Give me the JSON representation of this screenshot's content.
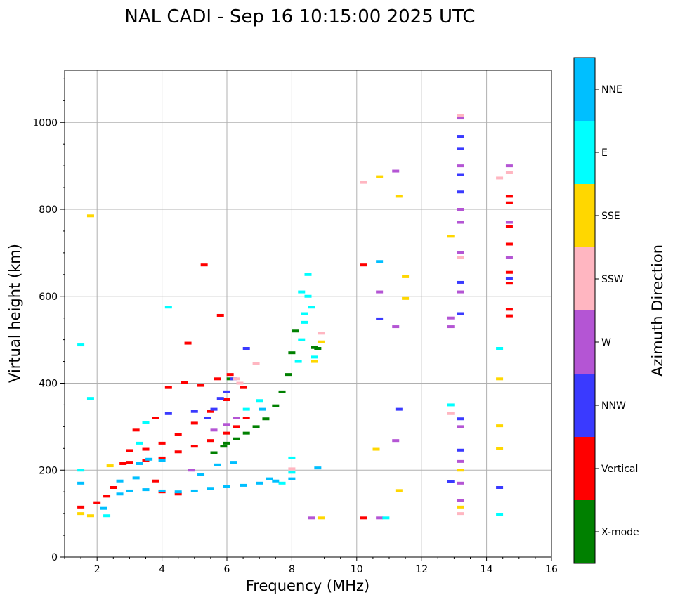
{
  "chart_data": {
    "type": "scatter",
    "title": "NAL CADI - Sep 16 10:15:00 2025 UTC",
    "xlabel": "Frequency (MHz)",
    "ylabel": "Virtual height (km)",
    "xlim": [
      1,
      16
    ],
    "ylim": [
      0,
      1120
    ],
    "x_ticks": [
      2,
      4,
      6,
      8,
      10,
      12,
      14,
      16
    ],
    "y_ticks": [
      0,
      200,
      400,
      600,
      800,
      1000
    ],
    "grid": true,
    "colorbar": {
      "label": "Azimuth Direction",
      "position": "right",
      "categories": [
        {
          "name": "X-mode",
          "color": "#008000"
        },
        {
          "name": "Vertical",
          "color": "#ff0000"
        },
        {
          "name": "NNW",
          "color": "#3a3aff"
        },
        {
          "name": "W",
          "color": "#b455d4"
        },
        {
          "name": "SSW",
          "color": "#ffb6c1"
        },
        {
          "name": "SSE",
          "color": "#ffd700"
        },
        {
          "name": "E",
          "color": "#00ffff"
        },
        {
          "name": "NNE",
          "color": "#00bfff"
        }
      ]
    },
    "series": [
      {
        "name": "X-mode",
        "points": [
          [
            6.0,
            262
          ],
          [
            6.3,
            272
          ],
          [
            6.6,
            285
          ],
          [
            6.9,
            300
          ],
          [
            7.2,
            318
          ],
          [
            7.5,
            348
          ],
          [
            7.7,
            380
          ],
          [
            7.9,
            420
          ],
          [
            8.0,
            470
          ],
          [
            8.1,
            520
          ],
          [
            8.7,
            482
          ],
          [
            8.8,
            480
          ],
          [
            5.6,
            240
          ],
          [
            5.9,
            255
          ],
          [
            6.1,
            410
          ]
        ]
      },
      {
        "name": "Vertical",
        "points": [
          [
            1.5,
            115
          ],
          [
            2.0,
            125
          ],
          [
            2.3,
            140
          ],
          [
            2.5,
            160
          ],
          [
            2.8,
            215
          ],
          [
            3.0,
            218
          ],
          [
            3.5,
            222
          ],
          [
            4.0,
            228
          ],
          [
            4.5,
            242
          ],
          [
            5.0,
            255
          ],
          [
            5.5,
            268
          ],
          [
            6.0,
            285
          ],
          [
            6.3,
            300
          ],
          [
            6.6,
            320
          ],
          [
            3.0,
            245
          ],
          [
            3.5,
            248
          ],
          [
            4.0,
            262
          ],
          [
            4.5,
            282
          ],
          [
            5.0,
            308
          ],
          [
            5.5,
            335
          ],
          [
            6.0,
            362
          ],
          [
            6.5,
            390
          ],
          [
            3.2,
            292
          ],
          [
            3.8,
            320
          ],
          [
            4.2,
            390
          ],
          [
            4.7,
            402
          ],
          [
            5.2,
            395
          ],
          [
            5.7,
            410
          ],
          [
            6.1,
            420
          ],
          [
            4.0,
            150
          ],
          [
            4.5,
            145
          ],
          [
            3.8,
            175
          ],
          [
            5.3,
            672
          ],
          [
            5.8,
            556
          ],
          [
            4.8,
            492
          ],
          [
            10.2,
            90
          ],
          [
            10.2,
            672
          ],
          [
            14.7,
            555
          ],
          [
            14.7,
            570
          ],
          [
            14.7,
            630
          ],
          [
            14.7,
            655
          ],
          [
            14.7,
            720
          ],
          [
            14.7,
            760
          ],
          [
            14.7,
            815
          ],
          [
            14.7,
            830
          ]
        ]
      },
      {
        "name": "NNW",
        "points": [
          [
            5.4,
            320
          ],
          [
            5.6,
            340
          ],
          [
            5.8,
            365
          ],
          [
            6.0,
            380
          ],
          [
            6.2,
            410
          ],
          [
            4.2,
            330
          ],
          [
            5.0,
            335
          ],
          [
            6.6,
            480
          ],
          [
            10.7,
            548
          ],
          [
            11.3,
            340
          ],
          [
            13.2,
            560
          ],
          [
            13.2,
            632
          ],
          [
            13.2,
            840
          ],
          [
            13.2,
            940
          ],
          [
            13.2,
            968
          ],
          [
            13.2,
            880
          ],
          [
            13.2,
            318
          ],
          [
            13.2,
            246
          ],
          [
            12.9,
            173
          ],
          [
            14.4,
            160
          ],
          [
            14.7,
            640
          ]
        ]
      },
      {
        "name": "W",
        "points": [
          [
            5.6,
            292
          ],
          [
            6.0,
            305
          ],
          [
            6.3,
            320
          ],
          [
            8.6,
            90
          ],
          [
            10.7,
            90
          ],
          [
            10.7,
            610
          ],
          [
            11.2,
            888
          ],
          [
            11.2,
            530
          ],
          [
            11.2,
            268
          ],
          [
            13.2,
            700
          ],
          [
            13.2,
            770
          ],
          [
            13.2,
            800
          ],
          [
            13.2,
            900
          ],
          [
            13.2,
            1010
          ],
          [
            13.2,
            610
          ],
          [
            13.2,
            300
          ],
          [
            13.2,
            220
          ],
          [
            13.2,
            170
          ],
          [
            13.2,
            130
          ],
          [
            12.9,
            550
          ],
          [
            12.9,
            530
          ],
          [
            14.7,
            770
          ],
          [
            14.7,
            900
          ],
          [
            14.7,
            690
          ],
          [
            4.9,
            200
          ]
        ]
      },
      {
        "name": "SSW",
        "points": [
          [
            6.4,
            400
          ],
          [
            6.9,
            445
          ],
          [
            8.9,
            515
          ],
          [
            10.2,
            862
          ],
          [
            13.2,
            690
          ],
          [
            13.2,
            1015
          ],
          [
            13.2,
            100
          ],
          [
            12.9,
            330
          ],
          [
            14.4,
            872
          ],
          [
            14.7,
            885
          ],
          [
            8.0,
            203
          ],
          [
            6.3,
            410
          ]
        ]
      },
      {
        "name": "SSE",
        "points": [
          [
            1.8,
            785
          ],
          [
            1.5,
            100
          ],
          [
            1.8,
            95
          ],
          [
            2.4,
            210
          ],
          [
            8.7,
            450
          ],
          [
            8.9,
            495
          ],
          [
            10.6,
            248
          ],
          [
            10.7,
            875
          ],
          [
            11.3,
            830
          ],
          [
            11.3,
            153
          ],
          [
            11.5,
            595
          ],
          [
            11.5,
            645
          ],
          [
            12.9,
            738
          ],
          [
            13.2,
            200
          ],
          [
            13.2,
            115
          ],
          [
            14.4,
            410
          ],
          [
            14.4,
            302
          ],
          [
            14.4,
            250
          ],
          [
            8.9,
            90
          ]
        ]
      },
      {
        "name": "E",
        "points": [
          [
            1.5,
            488
          ],
          [
            1.5,
            200
          ],
          [
            1.8,
            365
          ],
          [
            2.3,
            95
          ],
          [
            4.2,
            575
          ],
          [
            8.2,
            450
          ],
          [
            8.3,
            500
          ],
          [
            8.4,
            540
          ],
          [
            8.4,
            560
          ],
          [
            8.5,
            600
          ],
          [
            8.5,
            650
          ],
          [
            8.3,
            610
          ],
          [
            8.6,
            575
          ],
          [
            8.7,
            460
          ],
          [
            8.0,
            228
          ],
          [
            8.0,
            195
          ],
          [
            7.7,
            170
          ],
          [
            3.5,
            310
          ],
          [
            3.3,
            262
          ],
          [
            10.9,
            90
          ],
          [
            14.4,
            480
          ],
          [
            14.4,
            98
          ],
          [
            12.9,
            350
          ],
          [
            6.6,
            340
          ],
          [
            7.0,
            360
          ]
        ]
      },
      {
        "name": "NNE",
        "points": [
          [
            1.5,
            170
          ],
          [
            2.2,
            112
          ],
          [
            2.7,
            145
          ],
          [
            3.0,
            152
          ],
          [
            3.5,
            155
          ],
          [
            4.0,
            152
          ],
          [
            4.5,
            150
          ],
          [
            5.0,
            152
          ],
          [
            5.5,
            158
          ],
          [
            6.0,
            162
          ],
          [
            6.5,
            165
          ],
          [
            7.0,
            170
          ],
          [
            7.5,
            175
          ],
          [
            8.0,
            180
          ],
          [
            2.7,
            175
          ],
          [
            3.2,
            182
          ],
          [
            5.2,
            190
          ],
          [
            5.7,
            212
          ],
          [
            6.2,
            218
          ],
          [
            7.1,
            340
          ],
          [
            3.3,
            215
          ],
          [
            3.6,
            225
          ],
          [
            4.0,
            222
          ],
          [
            10.7,
            680
          ],
          [
            8.8,
            205
          ],
          [
            7.3,
            180
          ]
        ]
      }
    ]
  }
}
